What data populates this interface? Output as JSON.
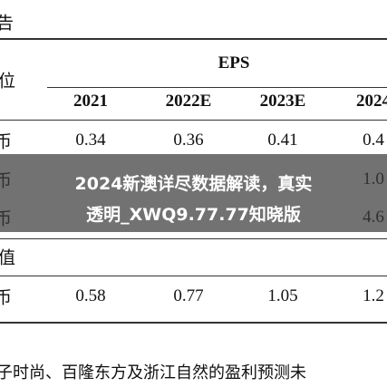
{
  "table": {
    "caption_fragment": "告",
    "unit_header": "位",
    "group_header": "EPS",
    "years": [
      "2021",
      "2022E",
      "2023E",
      "2024"
    ],
    "rows": [
      {
        "label": "币",
        "cells": [
          "0.34",
          "0.36",
          "0.41",
          "0.4"
        ]
      },
      {
        "label": "币",
        "last": "1.0"
      },
      {
        "label": "币",
        "last": "4.6"
      }
    ],
    "section_label": "值",
    "section_rows": [
      {
        "label": "币",
        "cells": [
          "0.58",
          "0.77",
          "1.05",
          "1.2"
        ]
      }
    ]
  },
  "overlay": {
    "lines": [
      "2024新澳详尽数据解读，真实",
      "透明_XWQ9.77.77知晓版"
    ]
  },
  "footnote": "子时尚、百隆东方及浙江自然的盈利预测未"
}
